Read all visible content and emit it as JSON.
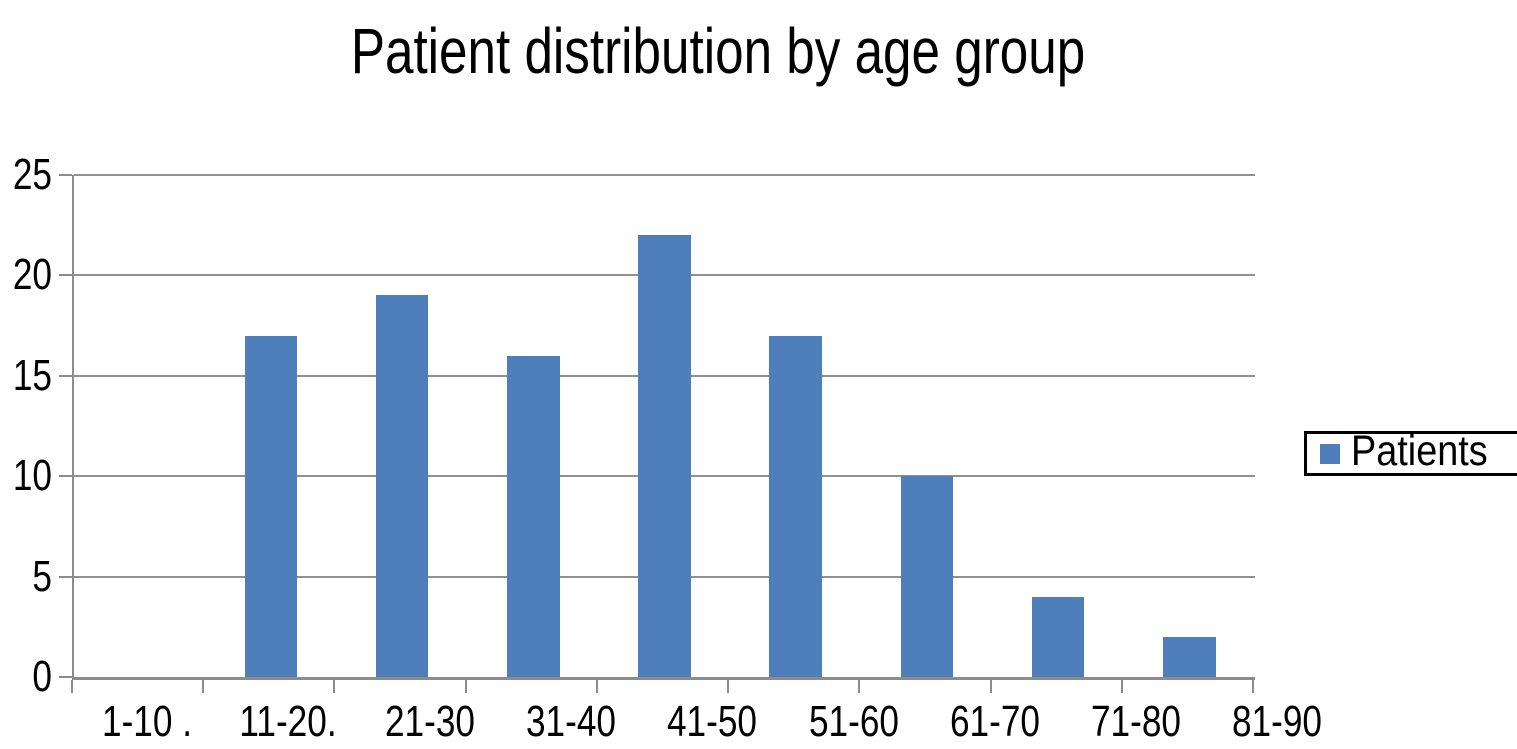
{
  "title": "Patient distribution by age group",
  "legend": {
    "label": "Patients",
    "swatch_color": "#4e7fba",
    "position": "right"
  },
  "chart_data": {
    "type": "bar",
    "title": "Patient distribution by age group",
    "categories": [
      "1-10 .",
      "11-20.",
      "21-30",
      "31-40",
      "41-50",
      "51-60",
      "61-70",
      "71-80",
      "81-90"
    ],
    "series": [
      {
        "name": "Patients",
        "values": [
          0,
          17,
          19,
          16,
          22,
          17,
          10,
          4,
          2
        ]
      }
    ],
    "xlabel": "",
    "ylabel": "",
    "ylim": [
      0,
      25
    ],
    "yticks": [
      0,
      5,
      10,
      15,
      20,
      25
    ],
    "grid": "horizontal",
    "legend_position": "right",
    "bar_color": "#4e7fba",
    "gridline_color": "#919191",
    "axis_color": "#8c8c8c",
    "text_color": "#000000",
    "background_color": "#ffffff"
  }
}
